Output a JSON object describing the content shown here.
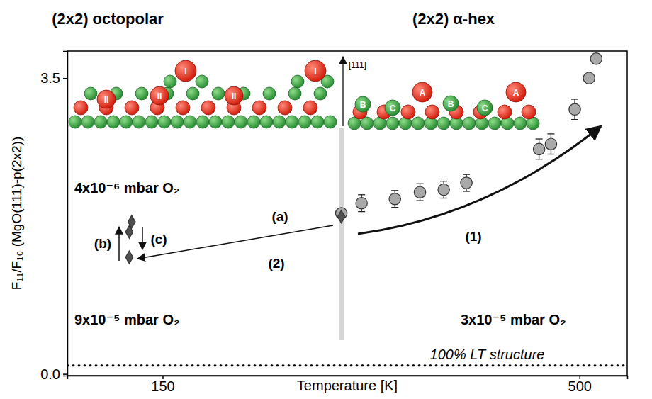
{
  "chart_data": {
    "type": "scatter",
    "headers": [
      "(2x2) octopolar",
      "(2x2) α-hex"
    ],
    "x_label": "Temperature [K]",
    "y_label": "F₁₁/F₁₀ (MgO(111)-p(2x2))",
    "xlim": [
      70,
      540
    ],
    "ylim": [
      -0.02,
      3.82
    ],
    "xticks": [
      150,
      500
    ],
    "yticks": [
      {
        "value": 0,
        "label": "0.0"
      },
      {
        "value": 3.5,
        "label": "3.5"
      }
    ],
    "grid": false,
    "series": [
      {
        "color": "#a9a9a9",
        "marker": "circle",
        "x": [
          300,
          317,
          345,
          366,
          386,
          405,
          466,
          476,
          496,
          508,
          514
        ],
        "values": [
          1.9,
          2.02,
          2.07,
          2.15,
          2.18,
          2.26,
          2.66,
          2.72,
          3.13,
          3.5,
          3.73
        ],
        "errors": [
          0.03,
          0.1,
          0.1,
          0.1,
          0.1,
          0.1,
          0.12,
          0.12,
          0.12,
          0.04,
          0.03
        ]
      },
      {
        "color": "#505050",
        "marker": "diamond",
        "x": [
          300,
          124,
          122,
          122
        ],
        "values": [
          1.86,
          1.8,
          1.68,
          1.38
        ]
      }
    ],
    "reference_lines": [
      {
        "axis": "y",
        "value": 0.1,
        "label": "100% LT structure",
        "line_style": "dotted"
      },
      {
        "axis": "x",
        "value": 300,
        "line_style": "solid"
      }
    ],
    "annotations": [
      "4x10⁻⁶ mbar O₂",
      "9x10⁻⁵ mbar O₂",
      "3x10⁻⁵ mbar O₂",
      "(a)",
      "(2)",
      "(1)",
      "(b)",
      "(c)",
      "[111]"
    ],
    "structure_labels": {
      "left": [
        "II",
        "I",
        "II",
        "II",
        "I"
      ],
      "right": [
        "B",
        "C",
        "A",
        "B",
        "C",
        "A"
      ]
    }
  }
}
